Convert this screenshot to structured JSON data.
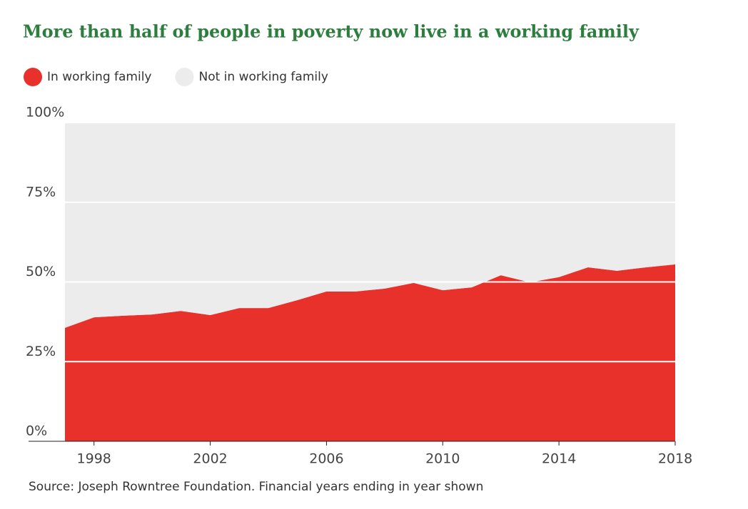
{
  "chart_data": {
    "type": "stacked-area",
    "title": "More than half of people in poverty now live in a working family",
    "source": "Source: Joseph Rowntree Foundation. Financial years ending in year shown",
    "x": [
      1997,
      1998,
      1999,
      2000,
      2001,
      2002,
      2003,
      2004,
      2005,
      2006,
      2007,
      2008,
      2009,
      2010,
      2011,
      2012,
      2013,
      2014,
      2015,
      2016,
      2017,
      2018
    ],
    "series": [
      {
        "name": "In working family",
        "color": "#e8312b",
        "values": [
          35.6,
          38.9,
          39.4,
          39.8,
          40.9,
          39.6,
          41.8,
          41.8,
          44.3,
          47.0,
          47.0,
          47.9,
          49.7,
          47.4,
          48.3,
          52.1,
          49.9,
          51.5,
          54.6,
          53.5,
          54.6,
          55.5
        ]
      },
      {
        "name": "Not in working family",
        "color": "#ececec",
        "values": [
          64.4,
          61.1,
          60.6,
          60.2,
          59.1,
          60.4,
          58.2,
          58.2,
          55.7,
          53.0,
          53.0,
          52.1,
          50.3,
          52.6,
          51.7,
          47.9,
          50.1,
          48.5,
          45.4,
          46.5,
          45.4,
          44.5
        ]
      }
    ],
    "xlim": [
      1997,
      2018
    ],
    "xticks": [
      1998,
      2002,
      2006,
      2010,
      2014,
      2018
    ],
    "ylim": [
      0,
      100
    ],
    "yticks": [
      {
        "value": 0,
        "label": "0%"
      },
      {
        "value": 25,
        "label": "25%"
      },
      {
        "value": 50,
        "label": "50%"
      },
      {
        "value": 75,
        "label": "75%"
      },
      {
        "value": 100,
        "label": "100%"
      }
    ],
    "grid": true
  }
}
